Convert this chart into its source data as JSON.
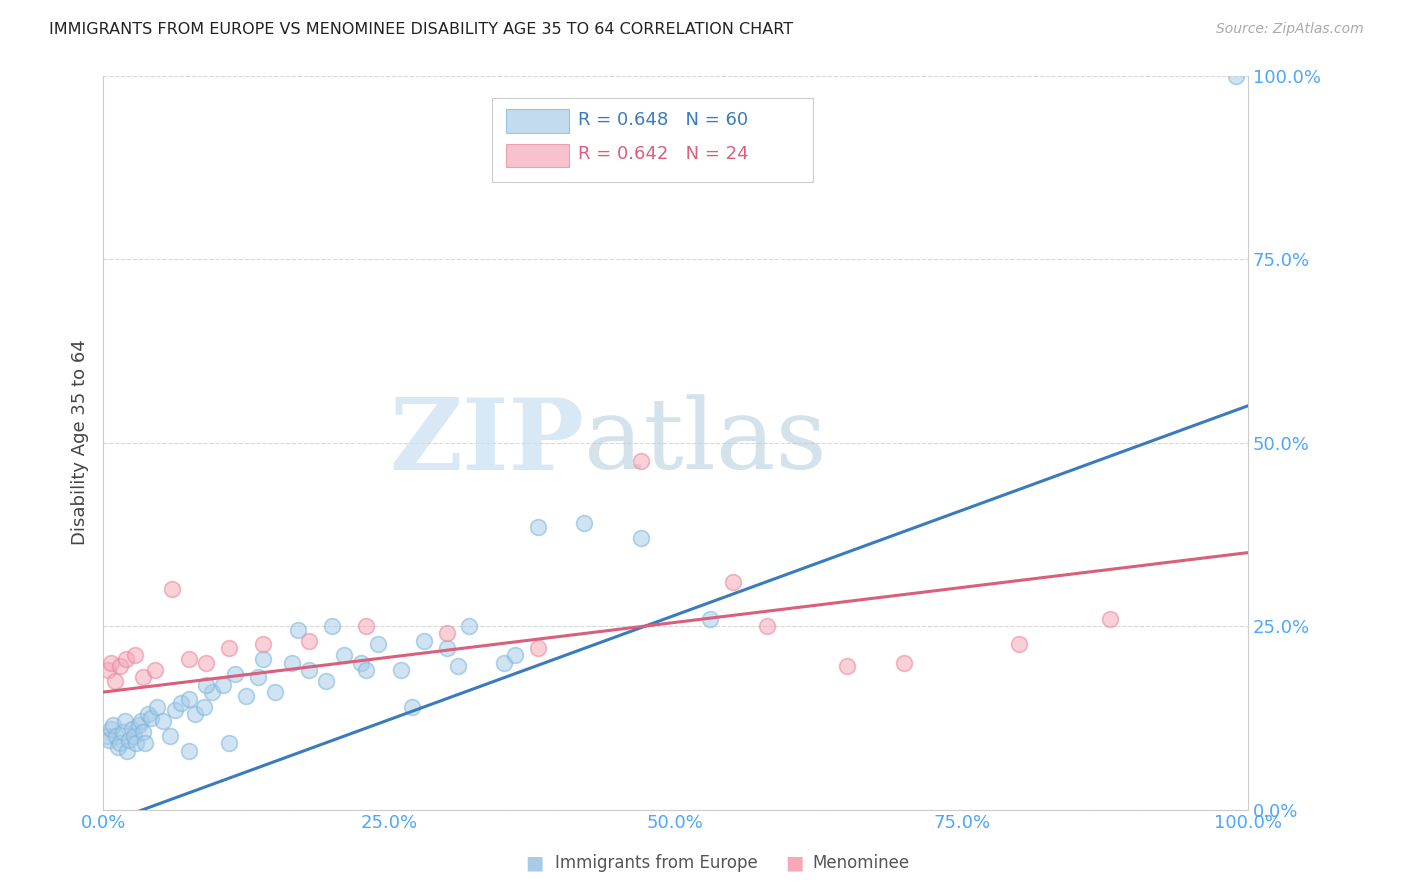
{
  "title": "IMMIGRANTS FROM EUROPE VS MENOMINEE DISABILITY AGE 35 TO 64 CORRELATION CHART",
  "source": "Source: ZipAtlas.com",
  "ylabel": "Disability Age 35 to 64",
  "watermark_zip": "ZIP",
  "watermark_atlas": "atlas",
  "blue_R": 0.648,
  "blue_N": 60,
  "pink_R": 0.642,
  "pink_N": 24,
  "blue_scatter_color": "#a8cce8",
  "blue_edge_color": "#7ab3d9",
  "pink_scatter_color": "#f5a8b8",
  "pink_edge_color": "#e8849a",
  "blue_line_color": "#3a7bbf",
  "pink_line_color": "#d95f7a",
  "blue_text_color": "#3a7bbf",
  "pink_text_color": "#d95f7a",
  "tick_color": "#4da6ff",
  "grid_color": "#d8d8d8",
  "background": "#ffffff",
  "blue_scatter_x": [
    0.3,
    0.5,
    0.7,
    0.9,
    1.1,
    1.3,
    1.5,
    1.7,
    1.9,
    2.1,
    2.3,
    2.5,
    2.7,
    2.9,
    3.1,
    3.3,
    3.5,
    3.7,
    3.9,
    4.2,
    4.7,
    5.2,
    5.8,
    6.3,
    6.8,
    7.5,
    8.0,
    8.8,
    9.5,
    10.5,
    11.0,
    12.5,
    13.5,
    15.0,
    16.5,
    18.0,
    19.5,
    21.0,
    22.5,
    24.0,
    26.0,
    28.0,
    30.0,
    32.0,
    35.0,
    38.0,
    42.0,
    47.0,
    53.0,
    7.5,
    9.0,
    11.5,
    14.0,
    17.0,
    20.0,
    23.0,
    27.0,
    31.0,
    36.0,
    99.0
  ],
  "blue_scatter_y": [
    10.0,
    9.5,
    11.0,
    11.5,
    10.0,
    8.5,
    9.0,
    10.5,
    12.0,
    8.0,
    9.5,
    11.0,
    10.0,
    9.0,
    11.5,
    12.0,
    10.5,
    9.0,
    13.0,
    12.5,
    14.0,
    12.0,
    10.0,
    13.5,
    14.5,
    15.0,
    13.0,
    14.0,
    16.0,
    17.0,
    9.0,
    15.5,
    18.0,
    16.0,
    20.0,
    19.0,
    17.5,
    21.0,
    20.0,
    22.5,
    19.0,
    23.0,
    22.0,
    25.0,
    20.0,
    38.5,
    39.0,
    37.0,
    26.0,
    8.0,
    17.0,
    18.5,
    20.5,
    24.5,
    25.0,
    19.0,
    14.0,
    19.5,
    21.0,
    100.0
  ],
  "pink_scatter_x": [
    0.4,
    0.7,
    1.0,
    1.5,
    2.0,
    2.8,
    3.5,
    4.5,
    6.0,
    7.5,
    9.0,
    11.0,
    14.0,
    18.0,
    23.0,
    30.0,
    38.0,
    47.0,
    58.0,
    70.0,
    80.0,
    88.0,
    55.0,
    65.0
  ],
  "pink_scatter_y": [
    19.0,
    20.0,
    17.5,
    19.5,
    20.5,
    21.0,
    18.0,
    19.0,
    30.0,
    20.5,
    20.0,
    22.0,
    22.5,
    23.0,
    25.0,
    24.0,
    22.0,
    47.5,
    25.0,
    20.0,
    22.5,
    26.0,
    31.0,
    19.5
  ],
  "blue_line_x0": 0,
  "blue_line_y0": -2.0,
  "blue_line_x1": 100,
  "blue_line_y1": 55.0,
  "pink_line_x0": 0,
  "pink_line_y0": 16.0,
  "pink_line_x1": 100,
  "pink_line_y1": 35.0,
  "xlim": [
    0,
    100
  ],
  "ylim": [
    0,
    100
  ],
  "xticks": [
    0,
    25,
    50,
    75,
    100
  ],
  "yticks": [
    0,
    25,
    50,
    75,
    100
  ],
  "xtick_labels": [
    "0.0%",
    "25.0%",
    "50.0%",
    "75.0%",
    "100.0%"
  ],
  "ytick_labels": [
    "0.0%",
    "25.0%",
    "50.0%",
    "75.0%",
    "100.0%"
  ]
}
